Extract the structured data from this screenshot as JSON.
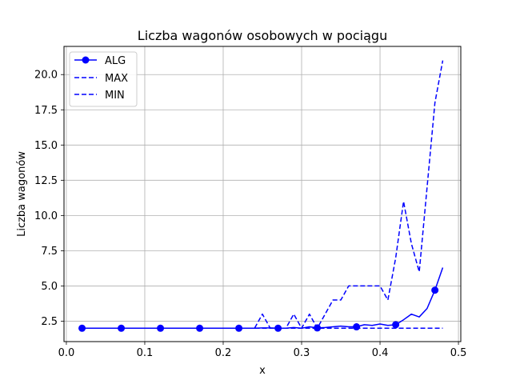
{
  "chart_data": {
    "type": "line",
    "title": "Liczba wagonów osobowych w pociągu",
    "xlabel": "x",
    "ylabel": "Liczba wagonów",
    "xlim": [
      -0.003,
      0.503
    ],
    "ylim": [
      1.05,
      22.0
    ],
    "xticks": [
      0.0,
      0.1,
      0.2,
      0.3,
      0.4,
      0.5
    ],
    "xtick_labels": [
      "0.0",
      "0.1",
      "0.2",
      "0.3",
      "0.4",
      "0.5"
    ],
    "yticks": [
      2.5,
      5.0,
      7.5,
      10.0,
      12.5,
      15.0,
      17.5,
      20.0
    ],
    "ytick_labels": [
      "2.5",
      "5.0",
      "7.5",
      "10.0",
      "12.5",
      "15.0",
      "17.5",
      "20.0"
    ],
    "grid": true,
    "legend_position": "top-left",
    "series": [
      {
        "name": "ALG",
        "color": "#0000ff",
        "style": "solid-marker",
        "x": [
          0.02,
          0.03,
          0.04,
          0.05,
          0.06,
          0.07,
          0.08,
          0.09,
          0.1,
          0.11,
          0.12,
          0.13,
          0.14,
          0.15,
          0.16,
          0.17,
          0.18,
          0.19,
          0.2,
          0.21,
          0.22,
          0.23,
          0.24,
          0.25,
          0.26,
          0.27,
          0.28,
          0.29,
          0.3,
          0.31,
          0.32,
          0.33,
          0.34,
          0.35,
          0.36,
          0.37,
          0.38,
          0.39,
          0.4,
          0.41,
          0.42,
          0.43,
          0.44,
          0.45,
          0.46,
          0.47,
          0.48
        ],
        "values": [
          2.0,
          2.0,
          2.0,
          2.0,
          2.0,
          2.0,
          2.0,
          2.0,
          2.0,
          2.0,
          2.0,
          2.0,
          2.0,
          2.0,
          2.0,
          2.0,
          2.0,
          2.0,
          2.0,
          2.0,
          2.0,
          2.0,
          2.0,
          2.02,
          2.02,
          2.0,
          2.0,
          2.05,
          2.0,
          2.1,
          2.02,
          2.05,
          2.1,
          2.15,
          2.1,
          2.1,
          2.25,
          2.2,
          2.3,
          2.2,
          2.25,
          2.6,
          3.0,
          2.8,
          3.4,
          4.7,
          6.3
        ],
        "marker_every": 5
      },
      {
        "name": "MAX",
        "color": "#0000ff",
        "style": "dashed",
        "x": [
          0.02,
          0.03,
          0.04,
          0.05,
          0.06,
          0.07,
          0.08,
          0.09,
          0.1,
          0.11,
          0.12,
          0.13,
          0.14,
          0.15,
          0.16,
          0.17,
          0.18,
          0.19,
          0.2,
          0.21,
          0.22,
          0.23,
          0.24,
          0.25,
          0.26,
          0.27,
          0.28,
          0.29,
          0.3,
          0.31,
          0.32,
          0.33,
          0.34,
          0.35,
          0.36,
          0.37,
          0.38,
          0.39,
          0.4,
          0.41,
          0.42,
          0.43,
          0.44,
          0.45,
          0.46,
          0.47,
          0.48
        ],
        "values": [
          2,
          2,
          2,
          2,
          2,
          2,
          2,
          2,
          2,
          2,
          2,
          2,
          2,
          2,
          2,
          2,
          2,
          2,
          2,
          2,
          2,
          2,
          2,
          3,
          2,
          2,
          2,
          3,
          2,
          3,
          2,
          3,
          4,
          4,
          5,
          5,
          5,
          5,
          5,
          4,
          7,
          11,
          8,
          6,
          12,
          18,
          21
        ]
      },
      {
        "name": "MIN",
        "color": "#0000ff",
        "style": "dashed",
        "x": [
          0.02,
          0.48
        ],
        "values": [
          2,
          2
        ]
      }
    ]
  }
}
